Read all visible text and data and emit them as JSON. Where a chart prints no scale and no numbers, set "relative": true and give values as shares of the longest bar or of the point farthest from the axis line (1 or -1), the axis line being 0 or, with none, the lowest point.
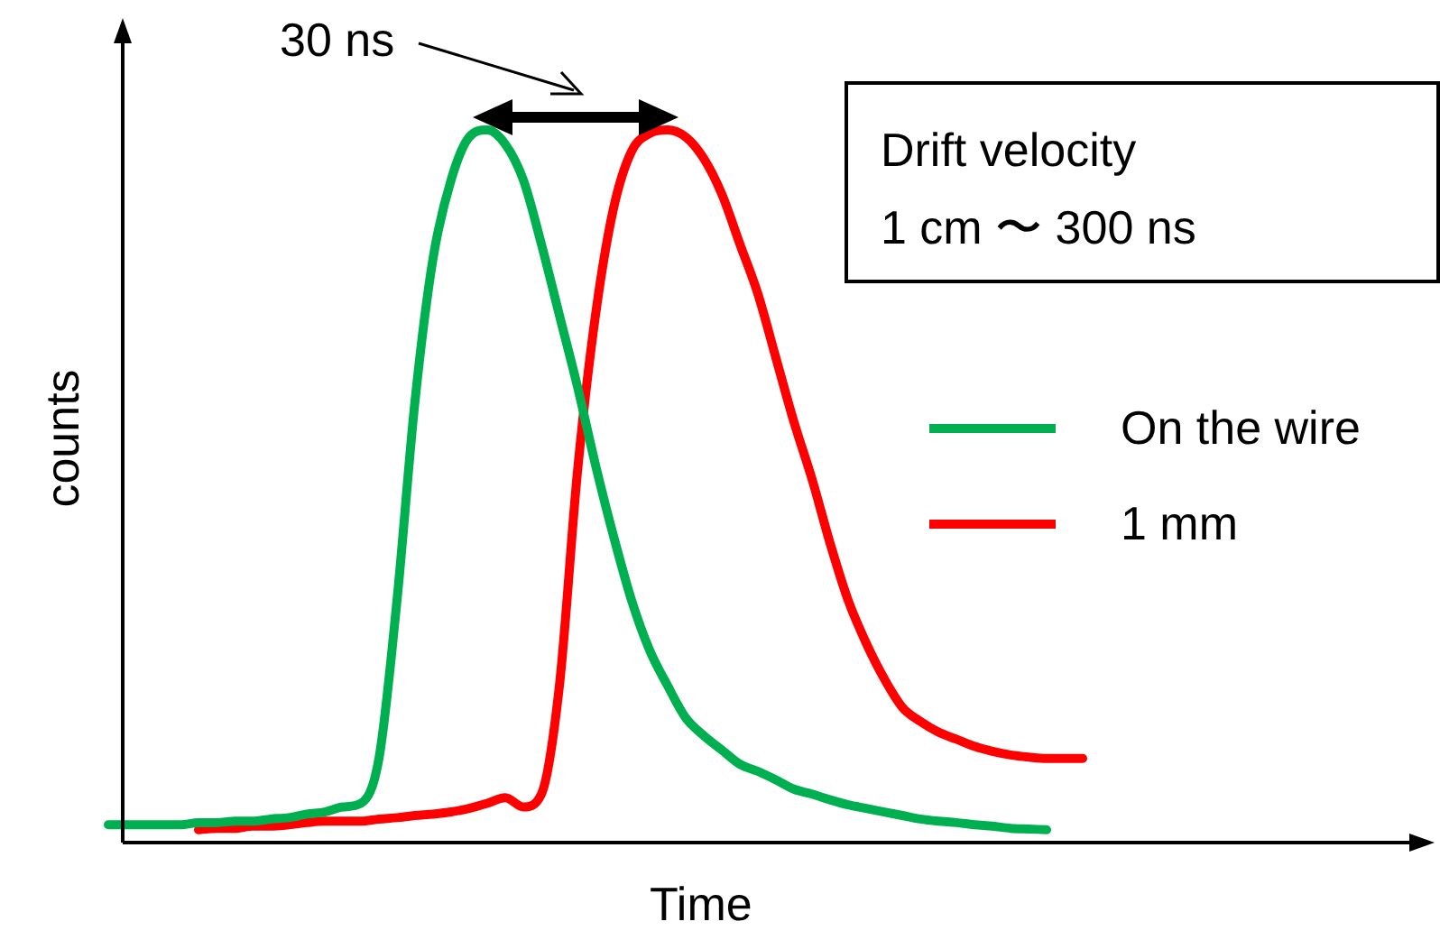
{
  "chart_data": {
    "type": "line",
    "relative": true,
    "xlabel": "Time",
    "ylabel": "counts",
    "legend": "right",
    "grid": false,
    "marker": "none",
    "line_style": "solid",
    "categories": [
      null,
      null,
      null,
      null,
      null,
      null,
      null,
      null,
      null,
      null,
      null,
      null,
      null,
      null,
      null,
      null,
      null,
      null,
      null,
      null,
      null,
      null,
      null,
      null,
      null,
      null,
      null,
      null,
      null,
      null,
      null,
      null,
      null,
      null,
      null,
      null,
      null,
      null,
      null,
      null,
      null,
      null,
      null,
      null,
      null,
      null,
      null,
      null,
      null,
      null,
      null,
      null,
      null,
      null,
      null,
      null,
      null,
      null,
      null,
      null,
      null,
      null,
      null,
      null,
      null,
      null,
      null,
      null,
      null,
      null,
      null,
      null,
      null,
      null
    ],
    "series": [
      {
        "name": "On the wire",
        "color": "#00b050",
        "values": [
          0.025,
          0.025,
          0.025,
          0.025,
          0.025,
          0.028,
          0.028,
          0.03,
          0.03,
          0.033,
          0.035,
          0.04,
          0.043,
          0.05,
          0.055,
          0.118,
          0.34,
          0.62,
          0.82,
          0.93,
          0.99,
          1.0,
          0.98,
          0.93,
          0.84,
          0.74,
          0.64,
          0.53,
          0.43,
          0.34,
          0.27,
          0.22,
          0.175,
          0.15,
          0.13,
          0.11,
          0.1,
          0.088,
          0.075,
          0.068,
          0.06,
          0.053,
          0.048,
          0.043,
          0.038,
          0.033,
          0.03,
          0.028,
          0.025,
          0.023,
          0.02,
          0.019,
          0.018,
          null,
          null,
          null,
          null,
          null,
          null,
          null,
          null,
          null,
          null,
          null,
          null,
          null,
          null,
          null,
          null,
          null,
          null,
          null,
          null,
          null
        ]
      },
      {
        "name": "1 mm",
        "color": "#ff0000",
        "values": [
          null,
          null,
          null,
          null,
          null,
          0.018,
          0.02,
          0.02,
          0.023,
          0.023,
          0.025,
          0.028,
          0.03,
          0.03,
          0.03,
          0.033,
          0.035,
          0.038,
          0.04,
          0.043,
          0.048,
          0.055,
          0.063,
          0.05,
          0.068,
          0.22,
          0.52,
          0.74,
          0.89,
          0.97,
          0.995,
          1.0,
          0.99,
          0.96,
          0.91,
          0.84,
          0.77,
          0.68,
          0.59,
          0.51,
          0.42,
          0.34,
          0.28,
          0.23,
          0.19,
          0.17,
          0.155,
          0.145,
          0.135,
          0.128,
          0.123,
          0.12,
          0.118,
          0.118,
          0.118,
          null,
          null,
          null,
          null,
          null,
          null,
          null,
          null,
          null,
          null,
          null,
          null,
          null,
          null,
          null,
          null,
          null,
          null,
          null
        ]
      }
    ],
    "annotations": [
      "30 ns",
      "Drift velocity",
      "1 cm 〜 300 ns"
    ]
  }
}
